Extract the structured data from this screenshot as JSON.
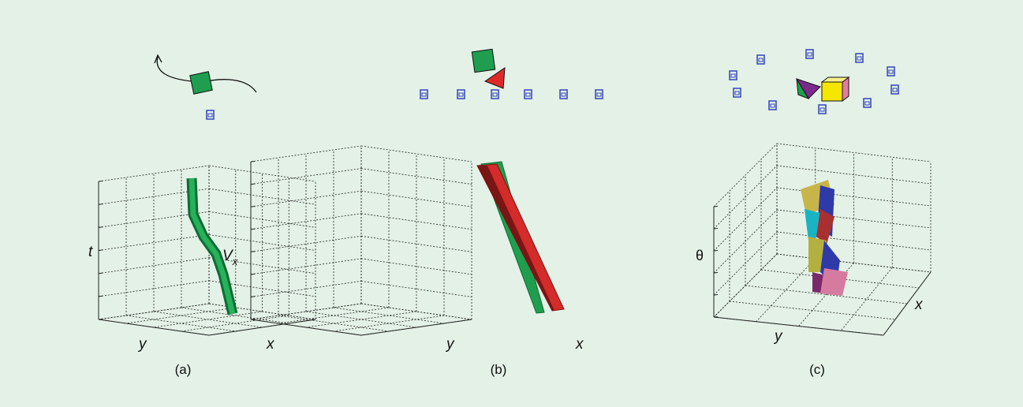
{
  "panels": [
    {
      "caption": "(a)",
      "axis_labels": {
        "vertical": "t",
        "y": "y",
        "x": "x"
      }
    },
    {
      "caption": "(b)",
      "axis_labels": {
        "vertical": "V",
        "vertical_subscript": "x",
        "y": "y",
        "x": "x"
      }
    },
    {
      "caption": "(c)",
      "axis_labels": {
        "vertical": "θ",
        "y": "y",
        "x": "x"
      }
    }
  ]
}
